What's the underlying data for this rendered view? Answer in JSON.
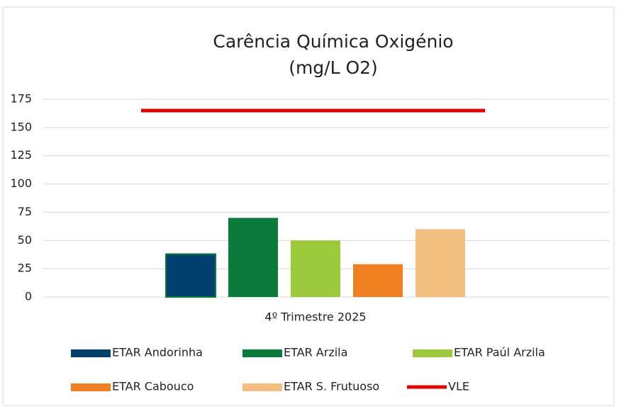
{
  "chart_data": {
    "type": "bar",
    "title": "Carência Química Oxigénio",
    "subtitle": "(mg/L O2)",
    "categories": [
      "4º Trimestre 2025"
    ],
    "series": [
      {
        "name": "ETAR Andorinha",
        "color": "#003f6e",
        "values": [
          38
        ]
      },
      {
        "name": "ETAR Arzila",
        "color": "#0b7a3b",
        "values": [
          70
        ]
      },
      {
        "name": "ETAR Paúl Arzila",
        "color": "#9dc93c",
        "values": [
          50
        ]
      },
      {
        "name": "ETAR Cabouco",
        "color": "#f07f22",
        "values": [
          29
        ]
      },
      {
        "name": "ETAR S. Frutuoso",
        "color": "#f2bf80",
        "values": [
          60
        ]
      },
      {
        "name": "VLE",
        "color": "#e00000",
        "type": "line",
        "values": [
          165
        ]
      }
    ],
    "ylim": [
      0,
      175
    ],
    "yticks": [
      0,
      25,
      50,
      75,
      100,
      125,
      150,
      175
    ],
    "grid": true
  }
}
